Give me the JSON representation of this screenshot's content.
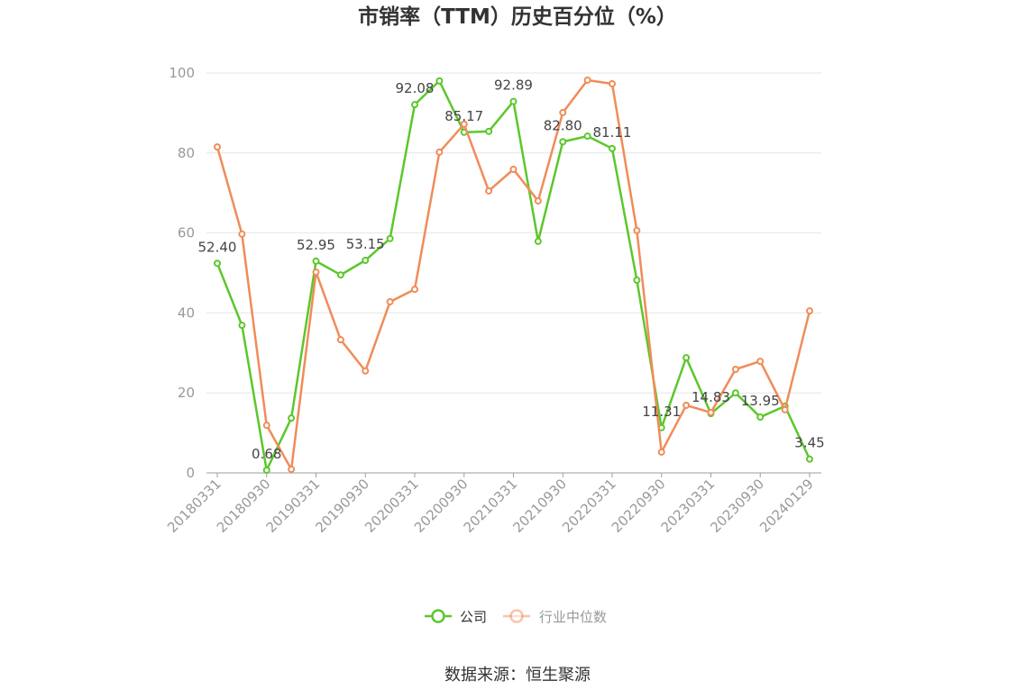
{
  "source": "数据来源：恒生聚源",
  "chart_data": {
    "type": "line",
    "title": "市销率（TTM）历史百分位（%）",
    "categories": [
      "20180331",
      "",
      "20180930",
      "",
      "20190331",
      "",
      "20190930",
      "",
      "20200331",
      "",
      "20200930",
      "",
      "20210331",
      "",
      "20210930",
      "",
      "20220331",
      "",
      "20220930",
      "",
      "20230331",
      "",
      "20230930",
      "",
      "20240129"
    ],
    "ylim": [
      0,
      100
    ],
    "yticks": [
      0,
      20,
      40,
      60,
      80,
      100
    ],
    "grid": true,
    "legend_position": "bottom",
    "series": [
      {
        "name": "公司",
        "color": "#5cc72c",
        "values": [
          52.4,
          36.9,
          0.68,
          13.7,
          52.95,
          49.5,
          53.15,
          58.6,
          92.08,
          98.0,
          85.17,
          85.4,
          92.89,
          57.9,
          82.8,
          84.2,
          81.11,
          48.2,
          11.31,
          28.8,
          14.83,
          20.0,
          13.95,
          16.7,
          3.45
        ],
        "labels": [
          "52.40",
          "",
          "0.68",
          "",
          "52.95",
          "",
          "53.15",
          "",
          "92.08",
          "",
          "85.17",
          "",
          "92.89",
          "",
          "82.80",
          "",
          "81.11",
          "",
          "11.31",
          "",
          "14.83",
          "",
          "13.95",
          "",
          "3.45"
        ]
      },
      {
        "name": "行业中位数",
        "color": "#f08c5a",
        "values": [
          81.5,
          59.7,
          11.9,
          0.9,
          50.2,
          33.3,
          25.5,
          42.8,
          45.9,
          80.2,
          87.2,
          70.5,
          75.9,
          68.0,
          90.1,
          98.2,
          97.3,
          60.6,
          5.2,
          16.9,
          15.1,
          25.9,
          27.9,
          15.8,
          40.5
        ]
      }
    ]
  }
}
